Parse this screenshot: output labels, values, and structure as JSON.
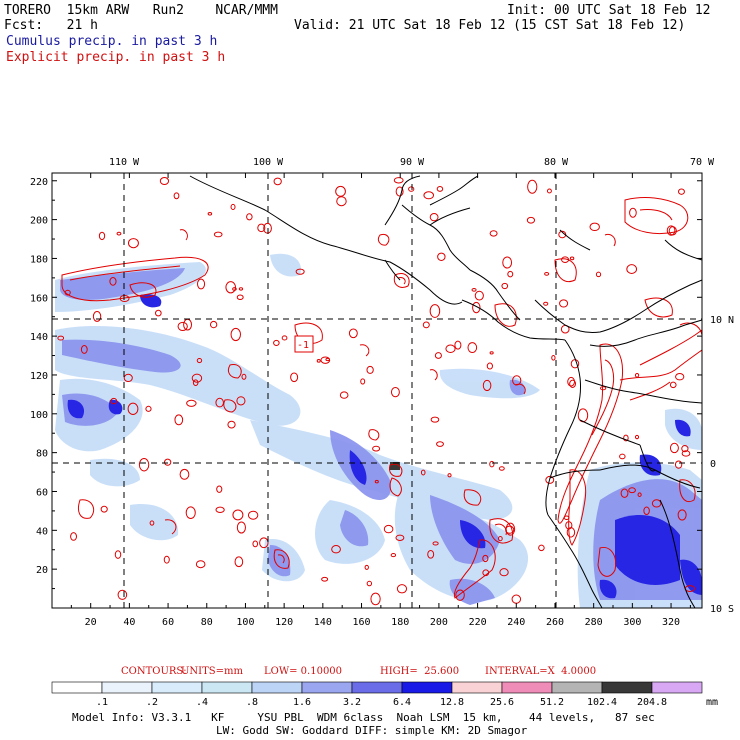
{
  "header": {
    "model": "TORERO  15km ARW   Run2    NCAR/MMM",
    "init": "Init: 00 UTC Sat 18 Feb 12",
    "fcst": "Fcst:   21 h",
    "valid": "Valid: 21 UTC Sat 18 Feb 12 (15 CST Sat 18 Feb 12)",
    "field1": "Cumulus precip. in past 3 h",
    "field2": "Explicit precip. in past 3 h"
  },
  "map": {
    "lon_labels": [
      "110 W",
      "100 W",
      "90 W",
      "80 W",
      "70 W"
    ],
    "lat_labels": [
      "10 N",
      "0",
      "10 S"
    ],
    "x_ticks": [
      "20",
      "40",
      "60",
      "80",
      "100",
      "120",
      "140",
      "160",
      "180",
      "200",
      "220",
      "240",
      "260",
      "280",
      "300",
      "320"
    ],
    "y_ticks": [
      "20",
      "40",
      "60",
      "80",
      "100",
      "120",
      "140",
      "160",
      "180",
      "200",
      "220"
    ],
    "low_marker": "-1",
    "colors": {
      "land": "#000000",
      "grid": "#000000",
      "explicit_contour": "#e00000",
      "cumulus_light": "#bcd4f6",
      "cumulus_mid": "#6a6ce8",
      "cumulus_dark": "#1010e0"
    }
  },
  "contour_info": {
    "contours": "CONTOURS:",
    "units": "UNITS=mm",
    "low": "LOW= 0.10000",
    "high": "HIGH=  25.600",
    "interval": "INTERVAL=X  4.0000"
  },
  "colorbar": {
    "labels": [
      ".1",
      ".2",
      ".4",
      ".8",
      "1.6",
      "3.2",
      "6.4",
      "12.8",
      "25.6",
      "51.2",
      "102.4",
      "204.8"
    ],
    "unit": "mm",
    "colors": [
      "#ffffff",
      "#eaf2fc",
      "#d8ecfc",
      "#cbe7f4",
      "#bcd4f6",
      "#9aa6f0",
      "#6a6ce8",
      "#1a1ae6",
      "#f8d2d4",
      "#f08cb8",
      "#b4b4b4",
      "#383838",
      "#d8a8f4"
    ]
  },
  "model_info": {
    "line1": "Model Info: V3.3.1   KF     YSU PBL  WDM 6class  Noah LSM  15 km,    44 levels,   87 sec",
    "line2": "LW: Godd SW: Goddard DIFF: simple KM: 2D Smagor"
  }
}
